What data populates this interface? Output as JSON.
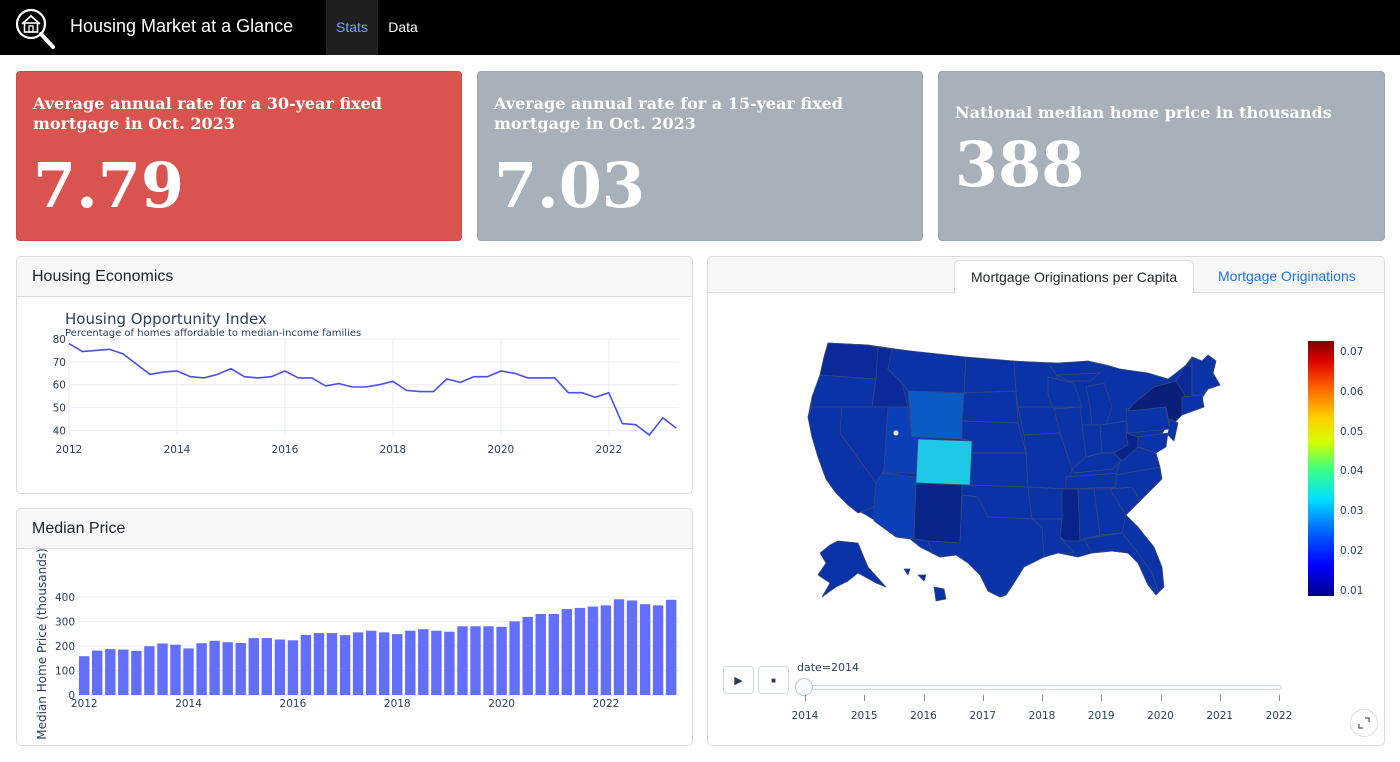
{
  "navbar": {
    "title": "Housing Market at a Glance",
    "links": [
      {
        "label": "Stats",
        "active": true
      },
      {
        "label": "Data",
        "active": false
      }
    ]
  },
  "kpis": [
    {
      "title": "Average annual rate for a 30-year fixed mortgage in Oct. 2023",
      "value": "7.79",
      "color": "#d9534f"
    },
    {
      "title": "Average annual rate for a 15-year fixed mortgage in Oct. 2023",
      "value": "7.03",
      "color": "#a8b0ba"
    },
    {
      "title": "National median home price in thousands",
      "value": "388",
      "color": "#a8b0ba"
    }
  ],
  "econ_card": {
    "header": "Housing Economics"
  },
  "price_card": {
    "header": "Median Price"
  },
  "map_card": {
    "tabs": [
      {
        "label": "Mortgage Originations per Capita",
        "active": true
      },
      {
        "label": "Mortgage Originations",
        "active": false
      }
    ],
    "slider_label": "date=2014",
    "slider_ticks": [
      "2014",
      "2015",
      "2016",
      "2017",
      "2018",
      "2019",
      "2020",
      "2021",
      "2022"
    ],
    "colorbar_ticks": [
      "0.07",
      "0.06",
      "0.05",
      "0.04",
      "0.03",
      "0.02",
      "0.01"
    ],
    "play_icon": "play-icon",
    "stop_icon": "stop-icon"
  },
  "chart_data": [
    {
      "type": "line",
      "title": "Housing Opportunity Index",
      "subtitle": "Percentage of homes affordable to median-income families",
      "x": [
        2012.0,
        2012.25,
        2012.5,
        2012.75,
        2013.0,
        2013.25,
        2013.5,
        2013.75,
        2014.0,
        2014.25,
        2014.5,
        2014.75,
        2015.0,
        2015.25,
        2015.5,
        2015.75,
        2016.0,
        2016.25,
        2016.5,
        2016.75,
        2017.0,
        2017.25,
        2017.5,
        2017.75,
        2018.0,
        2018.25,
        2018.5,
        2018.75,
        2019.0,
        2019.25,
        2019.5,
        2019.75,
        2020.0,
        2020.25,
        2020.5,
        2020.75,
        2021.0,
        2021.25,
        2021.5,
        2021.75,
        2022.0,
        2022.25,
        2022.5,
        2022.75,
        2023.0,
        2023.25
      ],
      "y": [
        78,
        74.5,
        75,
        75.5,
        73.5,
        69,
        64.5,
        65.5,
        66,
        63.5,
        63,
        64.5,
        67,
        63.5,
        63,
        63.5,
        66,
        63,
        63,
        59.5,
        60.5,
        59,
        59,
        60,
        61.5,
        57.5,
        57,
        57,
        62.5,
        61,
        63.5,
        63.5,
        66,
        65,
        63,
        63,
        63,
        56.5,
        56.5,
        54.5,
        56.5,
        43,
        42.5,
        38,
        45.5,
        41
      ],
      "xlim": [
        2012,
        2023.3
      ],
      "ylim": [
        38,
        80
      ],
      "xticks": [
        "2012",
        "2014",
        "2016",
        "2018",
        "2020",
        "2022"
      ],
      "yticks": [
        "80",
        "70",
        "60",
        "50",
        "40"
      ],
      "color": "#4a4ff0"
    },
    {
      "type": "bar",
      "ylabel": "Median Home Price (thousands)",
      "x": [
        2012.0,
        2012.25,
        2012.5,
        2012.75,
        2013.0,
        2013.25,
        2013.5,
        2013.75,
        2014.0,
        2014.25,
        2014.5,
        2014.75,
        2015.0,
        2015.25,
        2015.5,
        2015.75,
        2016.0,
        2016.25,
        2016.5,
        2016.75,
        2017.0,
        2017.25,
        2017.5,
        2017.75,
        2018.0,
        2018.25,
        2018.5,
        2018.75,
        2019.0,
        2019.25,
        2019.5,
        2019.75,
        2020.0,
        2020.25,
        2020.5,
        2020.75,
        2021.0,
        2021.25,
        2021.5,
        2021.75,
        2022.0,
        2022.25,
        2022.5,
        2022.75,
        2023.0,
        2023.25
      ],
      "values": [
        158,
        181,
        187,
        185,
        180,
        199,
        210,
        205,
        190,
        211,
        221,
        215,
        212,
        232,
        232,
        226,
        223,
        245,
        252,
        252,
        244,
        255,
        262,
        255,
        248,
        262,
        268,
        262,
        258,
        280,
        280,
        280,
        278,
        300,
        318,
        330,
        330,
        350,
        355,
        360,
        365,
        390,
        385,
        370,
        365,
        388
      ],
      "xlim": [
        2011.9,
        2023.4
      ],
      "ylim": [
        0,
        440
      ],
      "xticks": [
        "2012",
        "2014",
        "2016",
        "2018",
        "2020",
        "2022"
      ],
      "yticks": [
        "400",
        "300",
        "200",
        "100",
        "0"
      ],
      "color": "#636efa"
    }
  ],
  "map_colors": {
    "base": "#0b33a8",
    "dark": "#08248a",
    "darker": "#0a1f7a",
    "colorado": "#1ec8e6",
    "wyoming": "#0a5bc4",
    "border": "#3b4a74"
  }
}
